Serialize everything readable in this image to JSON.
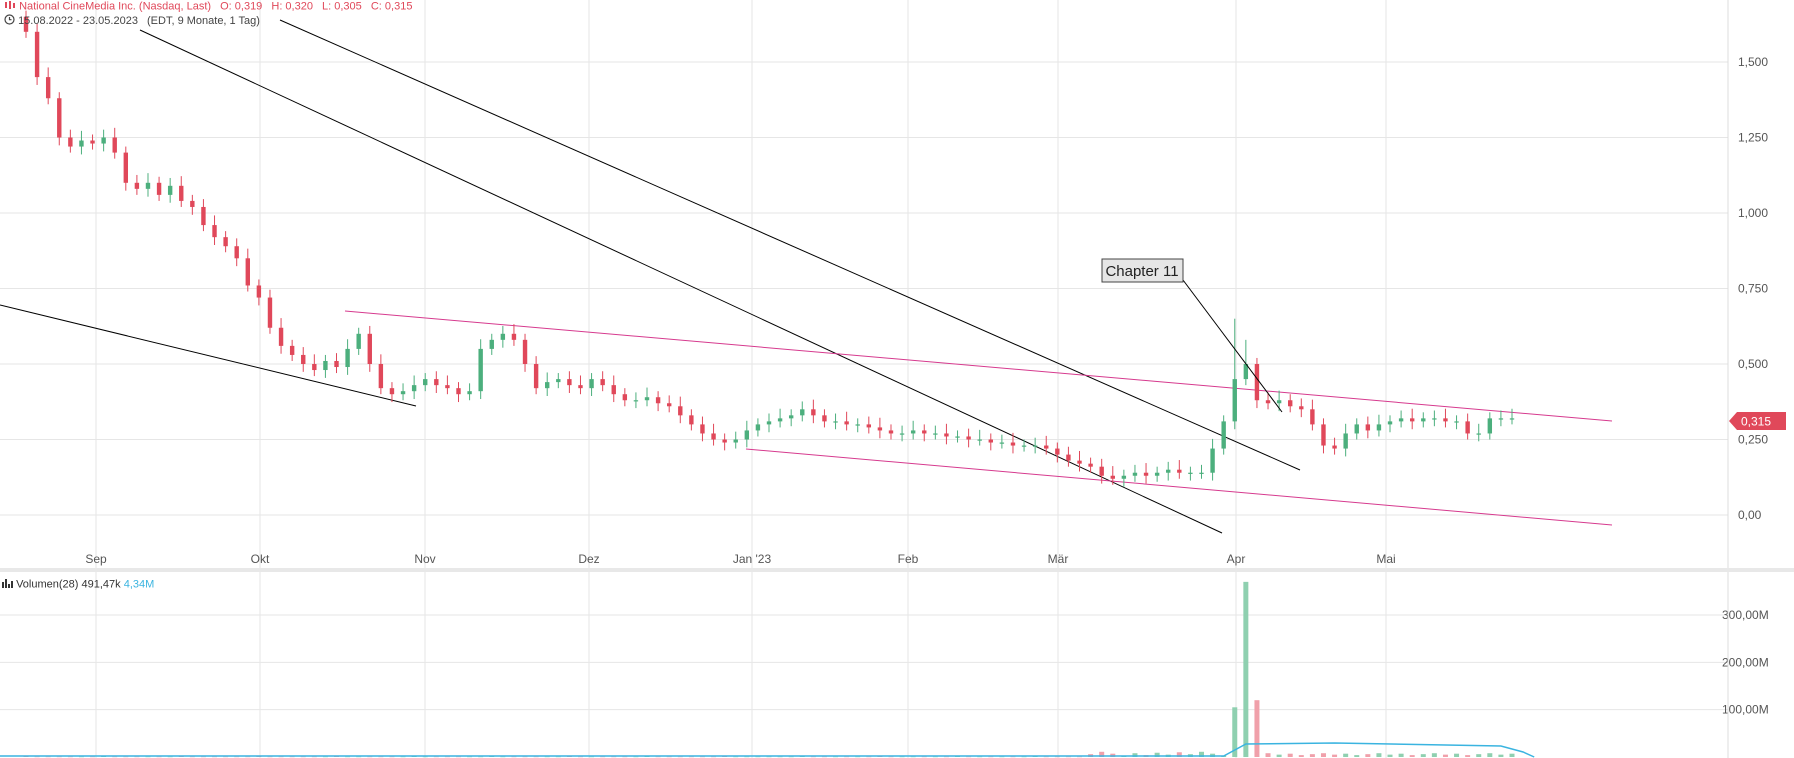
{
  "header": {
    "instrument": "National CineMedia Inc. (Nasdaq, Last)",
    "open": "O: 0,319",
    "high": "H: 0,320",
    "low": "L: 0,305",
    "close": "C: 0,315",
    "range": "15.08.2022 - 23.05.2023",
    "interval": "(EDT, 9 Monate, 1 Tag)"
  },
  "volume_header": {
    "label": "Volumen(28)",
    "value": "491,47k",
    "avg": "4,34M"
  },
  "annotation": "Chapter 11",
  "price_tag": "0,315",
  "colors": {
    "up": "#4caf7d",
    "down": "#e0485a",
    "trend_black": "#000000",
    "trend_pink": "#d63a8e",
    "vol_ma": "#3ab4e0",
    "grid": "#e6e6e6"
  },
  "chart_data": [
    {
      "type": "candlestick",
      "series_name": "National CineMedia Inc. (Nasdaq, Last)",
      "x_tick_labels": [
        "Sep",
        "Okt",
        "Nov",
        "Dez",
        "Jan '23",
        "Feb",
        "Mär",
        "Apr",
        "Mai"
      ],
      "y_tick_labels": [
        "1,500",
        "1,250",
        "1,000",
        "0,750",
        "0,500",
        "0,250",
        "0,00"
      ],
      "ylim": [
        -0.08,
        1.7
      ],
      "last_price": 0.315,
      "close_approx": [
        1.6,
        1.45,
        1.38,
        1.25,
        1.22,
        1.24,
        1.23,
        1.25,
        1.2,
        1.1,
        1.08,
        1.1,
        1.06,
        1.09,
        1.04,
        1.02,
        0.96,
        0.92,
        0.89,
        0.85,
        0.76,
        0.72,
        0.62,
        0.56,
        0.53,
        0.5,
        0.48,
        0.51,
        0.49,
        0.55,
        0.6,
        0.5,
        0.42,
        0.4,
        0.41,
        0.43,
        0.45,
        0.43,
        0.42,
        0.4,
        0.41,
        0.55,
        0.58,
        0.6,
        0.58,
        0.5,
        0.42,
        0.44,
        0.45,
        0.43,
        0.42,
        0.45,
        0.43,
        0.4,
        0.38,
        0.38,
        0.39,
        0.37,
        0.36,
        0.33,
        0.3,
        0.27,
        0.25,
        0.24,
        0.25,
        0.28,
        0.3,
        0.31,
        0.32,
        0.33,
        0.35,
        0.33,
        0.31,
        0.31,
        0.3,
        0.3,
        0.29,
        0.28,
        0.27,
        0.27,
        0.28,
        0.27,
        0.27,
        0.26,
        0.26,
        0.25,
        0.25,
        0.24,
        0.24,
        0.23,
        0.23,
        0.23,
        0.22,
        0.2,
        0.18,
        0.17,
        0.16,
        0.13,
        0.12,
        0.13,
        0.14,
        0.13,
        0.14,
        0.15,
        0.14,
        0.14,
        0.14,
        0.22,
        0.31,
        0.45,
        0.5,
        0.38,
        0.37,
        0.38,
        0.36,
        0.35,
        0.3,
        0.23,
        0.22,
        0.27,
        0.3,
        0.28,
        0.3,
        0.31,
        0.32,
        0.31,
        0.32,
        0.32,
        0.31,
        0.31,
        0.27,
        0.27,
        0.32,
        0.32,
        0.32
      ],
      "trendlines": [
        {
          "color": "black",
          "from": [
            "15.08.2022",
            0.7
          ],
          "to": [
            "Okt 2022",
            0.37
          ]
        },
        {
          "color": "black",
          "from": [
            "Aug 2022",
            1.65
          ],
          "to": [
            "Mär 2023",
            -0.03
          ]
        },
        {
          "color": "black",
          "from": [
            "Aug 2022",
            1.65
          ],
          "to": [
            "Apr 2023",
            0.15
          ]
        },
        {
          "color": "pink",
          "from": [
            "Okt 2022",
            0.67
          ],
          "to": [
            "Mai 2023",
            0.31
          ]
        },
        {
          "color": "pink",
          "from": [
            "Dez 2022",
            0.22
          ],
          "to": [
            "Mai 2023",
            -0.03
          ]
        }
      ]
    },
    {
      "type": "bar",
      "series_name": "Volumen(28)",
      "y_tick_labels": [
        "300,00M",
        "200,00M",
        "100,00M"
      ],
      "ylim": [
        0,
        380
      ],
      "spikes_M": [
        {
          "index": 109,
          "value": 105
        },
        {
          "index": 110,
          "value": 370
        },
        {
          "index": 111,
          "value": 120
        }
      ]
    }
  ]
}
